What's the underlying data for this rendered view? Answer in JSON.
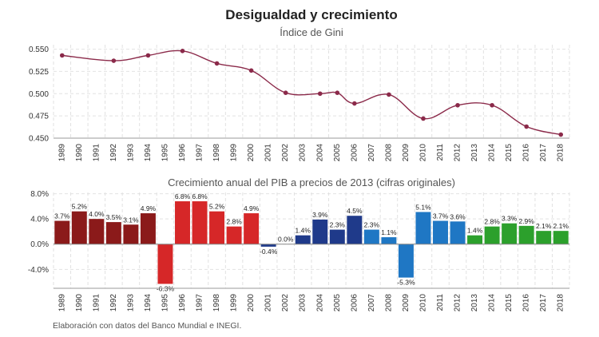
{
  "title": "Desigualdad y crecimiento",
  "note": "Elaboración con datos del Banco Mundial e INEGI.",
  "years": [
    "1989",
    "1990",
    "1991",
    "1992",
    "1993",
    "1994",
    "1995",
    "1996",
    "1997",
    "1998",
    "1999",
    "2000",
    "2001",
    "2002",
    "2003",
    "2004",
    "2005",
    "2006",
    "2007",
    "2008",
    "2009",
    "2010",
    "2011",
    "2012",
    "2013",
    "2014",
    "2015",
    "2016",
    "2017",
    "2018"
  ],
  "chart_data": [
    {
      "type": "line",
      "subtitle": "Índice de Gini",
      "line_color": "#8b2a4a",
      "ylim": [
        0.45,
        0.555
      ],
      "yticks": [
        "0.550",
        "0.525",
        "0.500",
        "0.475",
        "0.450"
      ],
      "ytick_values": [
        0.55,
        0.525,
        0.5,
        0.475,
        0.45
      ],
      "points": [
        {
          "x": "1989",
          "y": 0.543
        },
        {
          "x": "1992",
          "y": 0.537
        },
        {
          "x": "1994",
          "y": 0.543
        },
        {
          "x": "1996",
          "y": 0.548
        },
        {
          "x": "1998",
          "y": 0.534
        },
        {
          "x": "2000",
          "y": 0.526
        },
        {
          "x": "2002",
          "y": 0.501
        },
        {
          "x": "2004",
          "y": 0.5
        },
        {
          "x": "2005",
          "y": 0.501
        },
        {
          "x": "2006",
          "y": 0.489
        },
        {
          "x": "2008",
          "y": 0.499
        },
        {
          "x": "2010",
          "y": 0.472
        },
        {
          "x": "2012",
          "y": 0.487
        },
        {
          "x": "2014",
          "y": 0.487
        },
        {
          "x": "2016",
          "y": 0.463
        },
        {
          "x": "2018",
          "y": 0.454
        }
      ],
      "grid": true
    },
    {
      "type": "bar",
      "subtitle": "Crecimiento anual del PIB a precios de 2013 (cifras originales)",
      "ylim": [
        -7.0,
        8.2
      ],
      "yticks": [
        "8.0%",
        "4.0%",
        "0.0%",
        "-4.0%"
      ],
      "ytick_values": [
        8,
        4,
        0,
        -4
      ],
      "values": [
        3.7,
        5.2,
        4.0,
        3.5,
        3.1,
        4.9,
        -6.3,
        6.8,
        6.8,
        5.2,
        2.8,
        4.9,
        -0.4,
        0.0,
        1.4,
        3.9,
        2.3,
        4.5,
        2.3,
        1.1,
        -5.3,
        5.1,
        3.7,
        3.6,
        1.4,
        2.8,
        3.3,
        2.9,
        2.1,
        2.1
      ],
      "labels": [
        "3.7%",
        "5.2%",
        "4.0%",
        "3.5%",
        "3.1%",
        "4.9%",
        "-6.3%",
        "6.8%",
        "6.8%",
        "5.2%",
        "2.8%",
        "4.9%",
        "-0.4%",
        "0.0%",
        "1.4%",
        "3.9%",
        "2.3%",
        "4.5%",
        "2.3%",
        "1.1%",
        "-5.3%",
        "5.1%",
        "3.7%",
        "3.6%",
        "1.4%",
        "2.8%",
        "3.3%",
        "2.9%",
        "2.1%",
        "2.1%"
      ],
      "colors": [
        "#8b1a1a",
        "#8b1a1a",
        "#8b1a1a",
        "#8b1a1a",
        "#8b1a1a",
        "#8b1a1a",
        "#d62728",
        "#d62728",
        "#d62728",
        "#d62728",
        "#d62728",
        "#d62728",
        "#1f3a8a",
        "#1f3a8a",
        "#1f3a8a",
        "#1f3a8a",
        "#1f3a8a",
        "#1f3a8a",
        "#1f77c4",
        "#1f77c4",
        "#1f77c4",
        "#1f77c4",
        "#1f77c4",
        "#1f77c4",
        "#2ca02c",
        "#2ca02c",
        "#2ca02c",
        "#2ca02c",
        "#2ca02c",
        "#2ca02c"
      ],
      "grid": true
    }
  ]
}
